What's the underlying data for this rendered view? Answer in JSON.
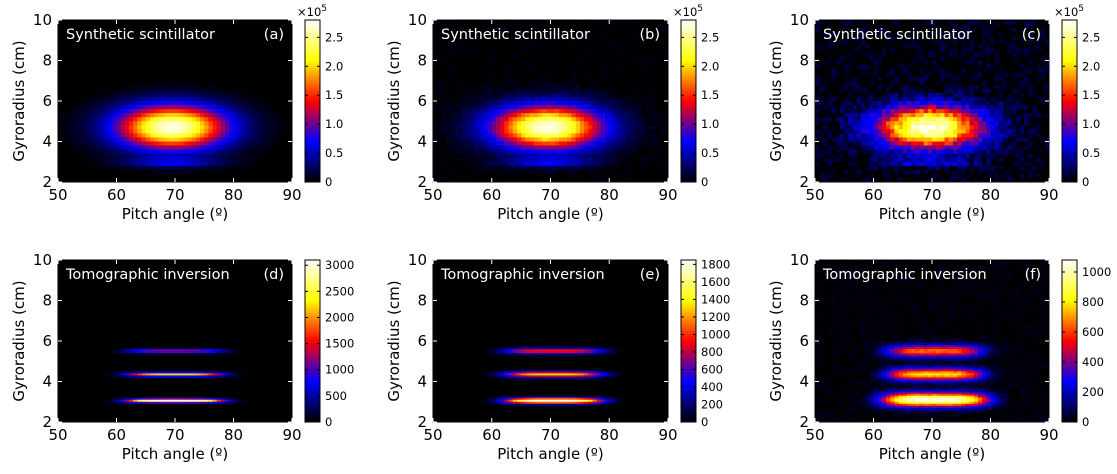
{
  "figure": {
    "panel_count": 6,
    "colormap": [
      "#000000",
      "#0000ff",
      "#ff0000",
      "#ffff00",
      "#ffffff"
    ]
  },
  "chart_data": [
    {
      "id": "a",
      "type": "heatmap",
      "title": "Synthetic scintillator",
      "panel_label": "(a)",
      "xlabel": "Pitch angle (º)",
      "ylabel": "Gyroradius (cm)",
      "xlim": [
        50,
        90
      ],
      "ylim": [
        2,
        10
      ],
      "x_ticks": [
        "50",
        "60",
        "70",
        "80",
        "90"
      ],
      "y_ticks": [
        "2",
        "4",
        "6",
        "8",
        "10"
      ],
      "colorbar": {
        "ticks": [
          "0",
          "0.5",
          "1.0",
          "1.5",
          "2.0",
          "2.5"
        ],
        "tick_values": [
          0,
          0.5,
          1.0,
          1.5,
          2.0,
          2.5
        ],
        "max": 2.8,
        "multiplier": "×10",
        "exponent": "5"
      },
      "structure": "blob",
      "blobs": [
        {
          "x": 69.5,
          "y": 4.7,
          "sx": 6.5,
          "sy": 0.75,
          "amp": 2.75
        },
        {
          "x": 69.5,
          "y": 2.95,
          "sx": 5.5,
          "sy": 0.15,
          "amp": 0.55
        }
      ],
      "noise": 0.0
    },
    {
      "id": "b",
      "type": "heatmap",
      "title": "Synthetic scintillator",
      "panel_label": "(b)",
      "xlabel": "Pitch angle (º)",
      "ylabel": "Gyroradius (cm)",
      "xlim": [
        50,
        90
      ],
      "ylim": [
        2,
        10
      ],
      "x_ticks": [
        "50",
        "60",
        "70",
        "80",
        "90"
      ],
      "y_ticks": [
        "2",
        "4",
        "6",
        "8",
        "10"
      ],
      "colorbar": {
        "ticks": [
          "0",
          "0.5",
          "1.0",
          "1.5",
          "2.0",
          "2.5"
        ],
        "tick_values": [
          0,
          0.5,
          1.0,
          1.5,
          2.0,
          2.5
        ],
        "max": 2.8,
        "multiplier": "×10",
        "exponent": "5"
      },
      "structure": "blob",
      "blobs": [
        {
          "x": 69.5,
          "y": 4.7,
          "sx": 6.5,
          "sy": 0.75,
          "amp": 2.75
        },
        {
          "x": 69.5,
          "y": 2.95,
          "sx": 5.5,
          "sy": 0.15,
          "amp": 0.55
        }
      ],
      "noise": 0.04
    },
    {
      "id": "c",
      "type": "heatmap",
      "title": "Synthetic scintillator",
      "panel_label": "(c)",
      "xlabel": "Pitch angle (º)",
      "ylabel": "Gyroradius (cm)",
      "xlim": [
        50,
        90
      ],
      "ylim": [
        2,
        10
      ],
      "x_ticks": [
        "50",
        "60",
        "70",
        "80",
        "90"
      ],
      "y_ticks": [
        "2",
        "4",
        "6",
        "8",
        "10"
      ],
      "colorbar": {
        "ticks": [
          "0",
          "0.5",
          "1.0",
          "1.5",
          "2.0",
          "2.5"
        ],
        "tick_values": [
          0,
          0.5,
          1.0,
          1.5,
          2.0,
          2.5
        ],
        "max": 2.8,
        "multiplier": "×10",
        "exponent": "5"
      },
      "structure": "blob",
      "blobs": [
        {
          "x": 69.5,
          "y": 4.7,
          "sx": 6.5,
          "sy": 0.75,
          "amp": 2.75
        },
        {
          "x": 69.5,
          "y": 2.95,
          "sx": 5.5,
          "sy": 0.15,
          "amp": 0.55
        }
      ],
      "noise": 0.15
    },
    {
      "id": "d",
      "type": "heatmap",
      "title": "Tomographic inversion",
      "panel_label": "(d)",
      "xlabel": "Pitch angle (º)",
      "ylabel": "Gyroradius (cm)",
      "xlim": [
        50,
        90
      ],
      "ylim": [
        2,
        10
      ],
      "x_ticks": [
        "50",
        "60",
        "70",
        "80",
        "90"
      ],
      "y_ticks": [
        "2",
        "4",
        "6",
        "8",
        "10"
      ],
      "colorbar": {
        "ticks": [
          "0",
          "500",
          "1000",
          "1500",
          "2000",
          "2500",
          "3000"
        ],
        "tick_values": [
          0,
          500,
          1000,
          1500,
          2000,
          2500,
          3000
        ],
        "max": 3100,
        "multiplier": "",
        "exponent": ""
      },
      "structure": "bands",
      "bands": [
        {
          "y": 5.5,
          "amp": 1350,
          "sx": 5.5,
          "thick": 0.07
        },
        {
          "y": 4.35,
          "amp": 2200,
          "sx": 5.5,
          "thick": 0.07
        },
        {
          "y": 3.05,
          "amp": 3050,
          "sx": 5.5,
          "thick": 0.07
        }
      ],
      "center_x": 70.0,
      "noise": 0.0
    },
    {
      "id": "e",
      "type": "heatmap",
      "title": "Tomographic inversion",
      "panel_label": "(e)",
      "xlabel": "Pitch angle (º)",
      "ylabel": "Gyroradius (cm)",
      "xlim": [
        50,
        90
      ],
      "ylim": [
        2,
        10
      ],
      "x_ticks": [
        "50",
        "60",
        "70",
        "80",
        "90"
      ],
      "y_ticks": [
        "2",
        "4",
        "6",
        "8",
        "10"
      ],
      "colorbar": {
        "ticks": [
          "0",
          "200",
          "400",
          "600",
          "800",
          "1000",
          "1200",
          "1400",
          "1600",
          "1800"
        ],
        "tick_values": [
          0,
          200,
          400,
          600,
          800,
          1000,
          1200,
          1400,
          1600,
          1800
        ],
        "max": 1850,
        "multiplier": "",
        "exponent": ""
      },
      "structure": "bands",
      "bands": [
        {
          "y": 5.5,
          "amp": 1000,
          "sx": 5.5,
          "thick": 0.1
        },
        {
          "y": 4.35,
          "amp": 1300,
          "sx": 5.5,
          "thick": 0.1
        },
        {
          "y": 3.05,
          "amp": 1800,
          "sx": 5.5,
          "thick": 0.1
        }
      ],
      "center_x": 70.5,
      "noise": 0.0
    },
    {
      "id": "f",
      "type": "heatmap",
      "title": "Tomographic inversion",
      "panel_label": "(f)",
      "xlabel": "Pitch angle (º)",
      "ylabel": "Gyroradius (cm)",
      "xlim": [
        50,
        90
      ],
      "ylim": [
        2,
        10
      ],
      "x_ticks": [
        "50",
        "60",
        "70",
        "80",
        "90"
      ],
      "y_ticks": [
        "2",
        "4",
        "6",
        "8",
        "10"
      ],
      "colorbar": {
        "ticks": [
          "0",
          "200",
          "400",
          "600",
          "800",
          "1000"
        ],
        "tick_values": [
          0,
          200,
          400,
          600,
          800,
          1000
        ],
        "max": 1080,
        "multiplier": "",
        "exponent": ""
      },
      "structure": "bands",
      "bands": [
        {
          "y": 5.5,
          "amp": 650,
          "sx": 5.5,
          "thick": 0.22
        },
        {
          "y": 4.35,
          "amp": 780,
          "sx": 5.5,
          "thick": 0.22
        },
        {
          "y": 3.1,
          "amp": 1060,
          "sx": 6.0,
          "thick": 0.25
        }
      ],
      "center_x": 70.5,
      "noise": 0.06
    }
  ]
}
